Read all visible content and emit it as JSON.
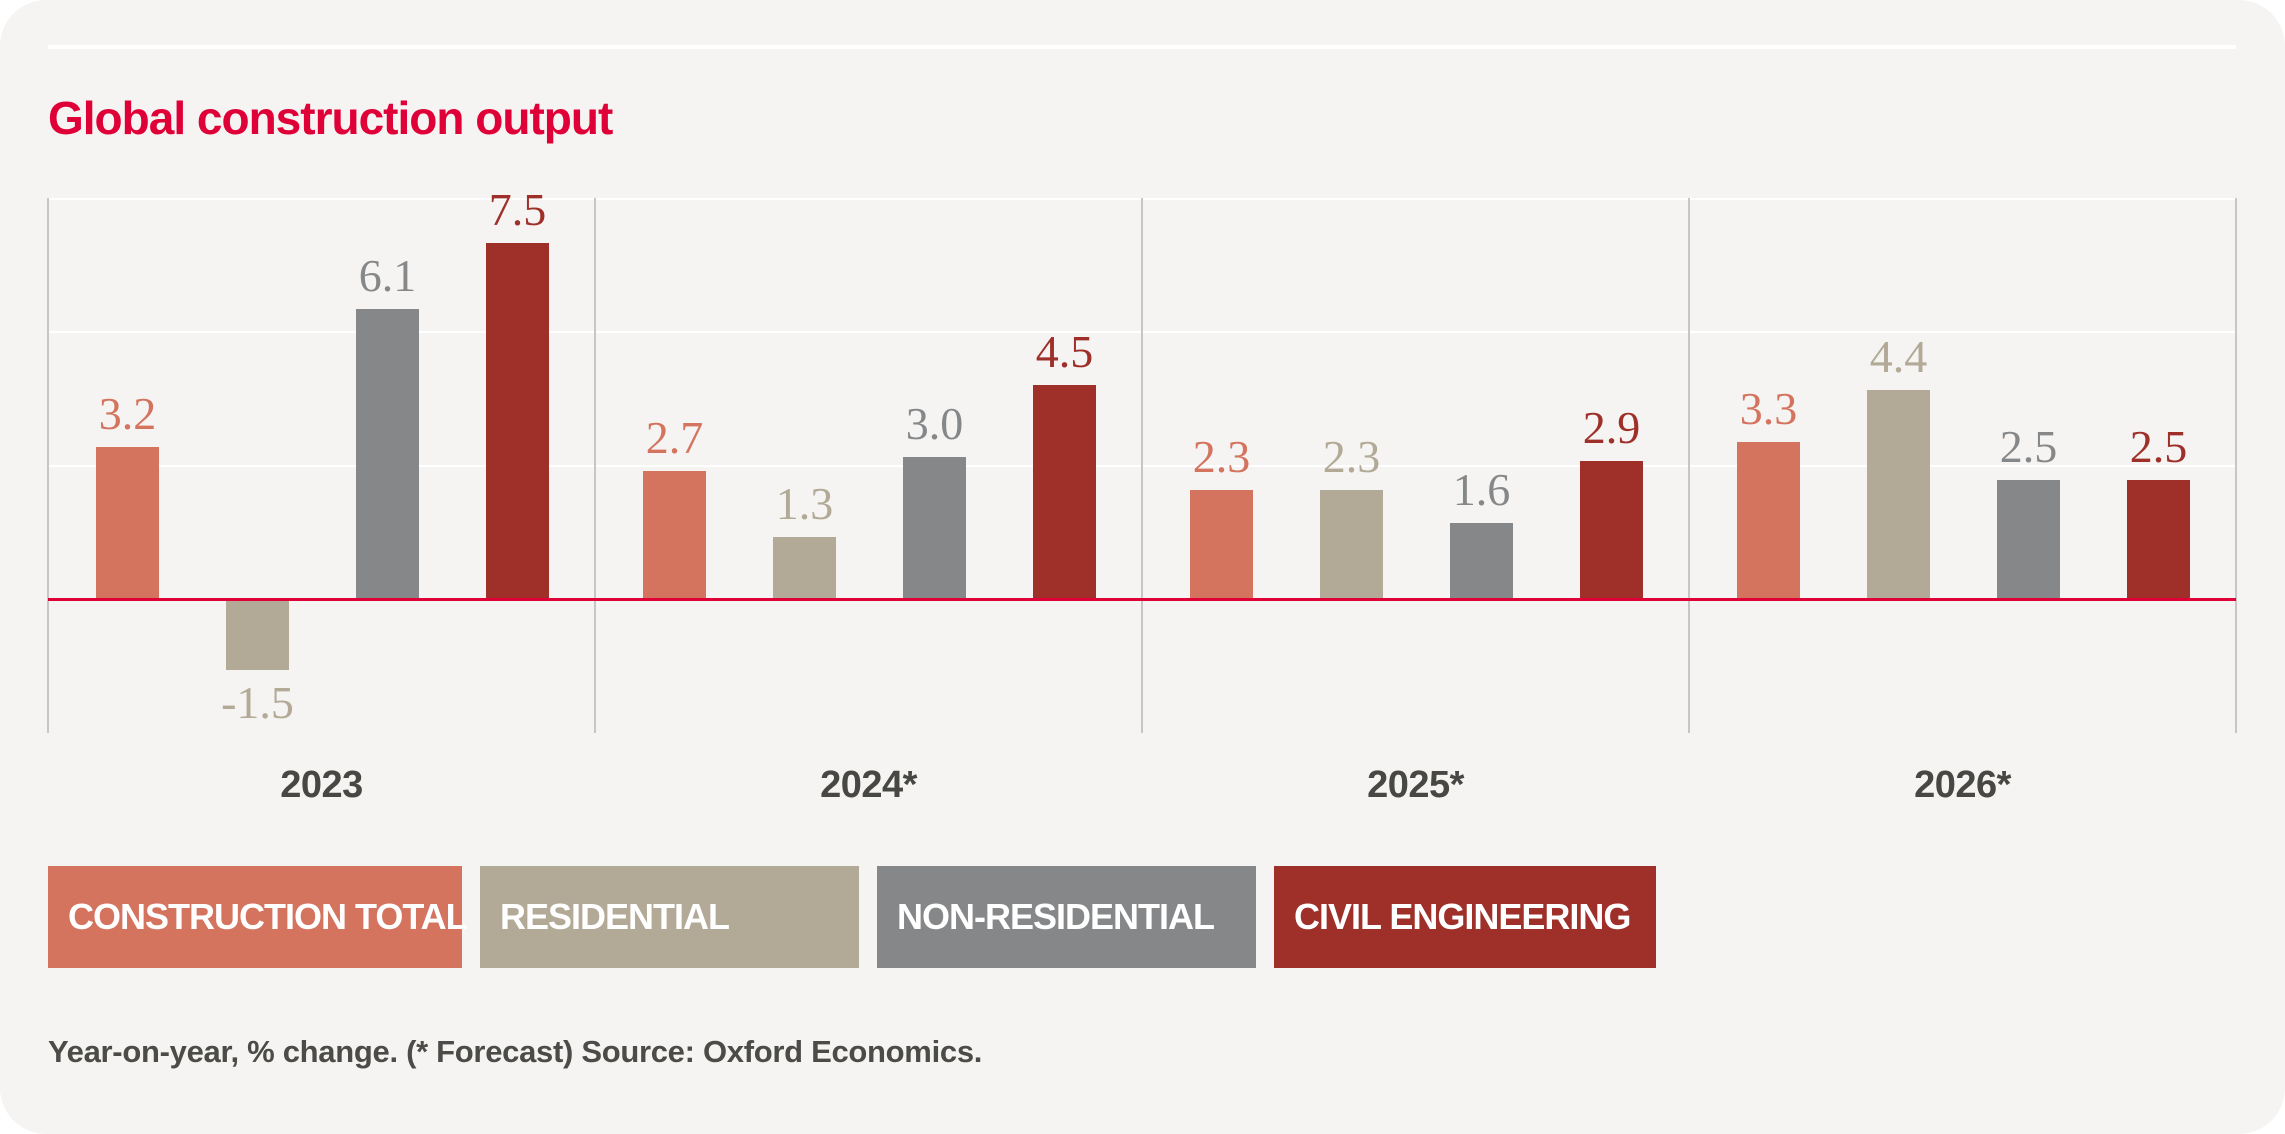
{
  "card": {
    "title": "Global construction output",
    "footnote": "Year-on-year, % change. (* Forecast) Source: Oxford Economics."
  },
  "colors": {
    "page_bg": "#ffffff",
    "card_bg": "#f5f4f2",
    "accent": "#e00038",
    "zero_line": "#e00038",
    "gridline": "#ffffff",
    "separator": "#c7c6c4",
    "year_label": "#474744",
    "footnote_text": "#4b4b48",
    "legend_text": "#ffffff"
  },
  "chart_data": {
    "type": "bar",
    "title": "Global construction output",
    "categories": [
      "2023",
      "2024*",
      "2025*",
      "2026*"
    ],
    "series": [
      {
        "name": "CONSTRUCTION TOTAL",
        "color": "#d4735e",
        "values": [
          3.2,
          2.7,
          2.3,
          3.3
        ]
      },
      {
        "name": "RESIDENTIAL",
        "color": "#b2a996",
        "values": [
          -1.5,
          1.3,
          2.3,
          4.4
        ]
      },
      {
        "name": "NON-RESIDENTIAL",
        "color": "#868789",
        "values": [
          6.1,
          3.0,
          1.6,
          2.5
        ]
      },
      {
        "name": "CIVIL ENGINEERING",
        "color": "#9e3029",
        "values": [
          7.5,
          4.5,
          2.9,
          2.5
        ]
      }
    ],
    "value_label_format": "one_decimal",
    "baseline": 0,
    "ylim": [
      -3,
      9
    ],
    "gridline_step": 3,
    "grid": "on",
    "legend_position": "below",
    "value_labels": "above_bars"
  }
}
